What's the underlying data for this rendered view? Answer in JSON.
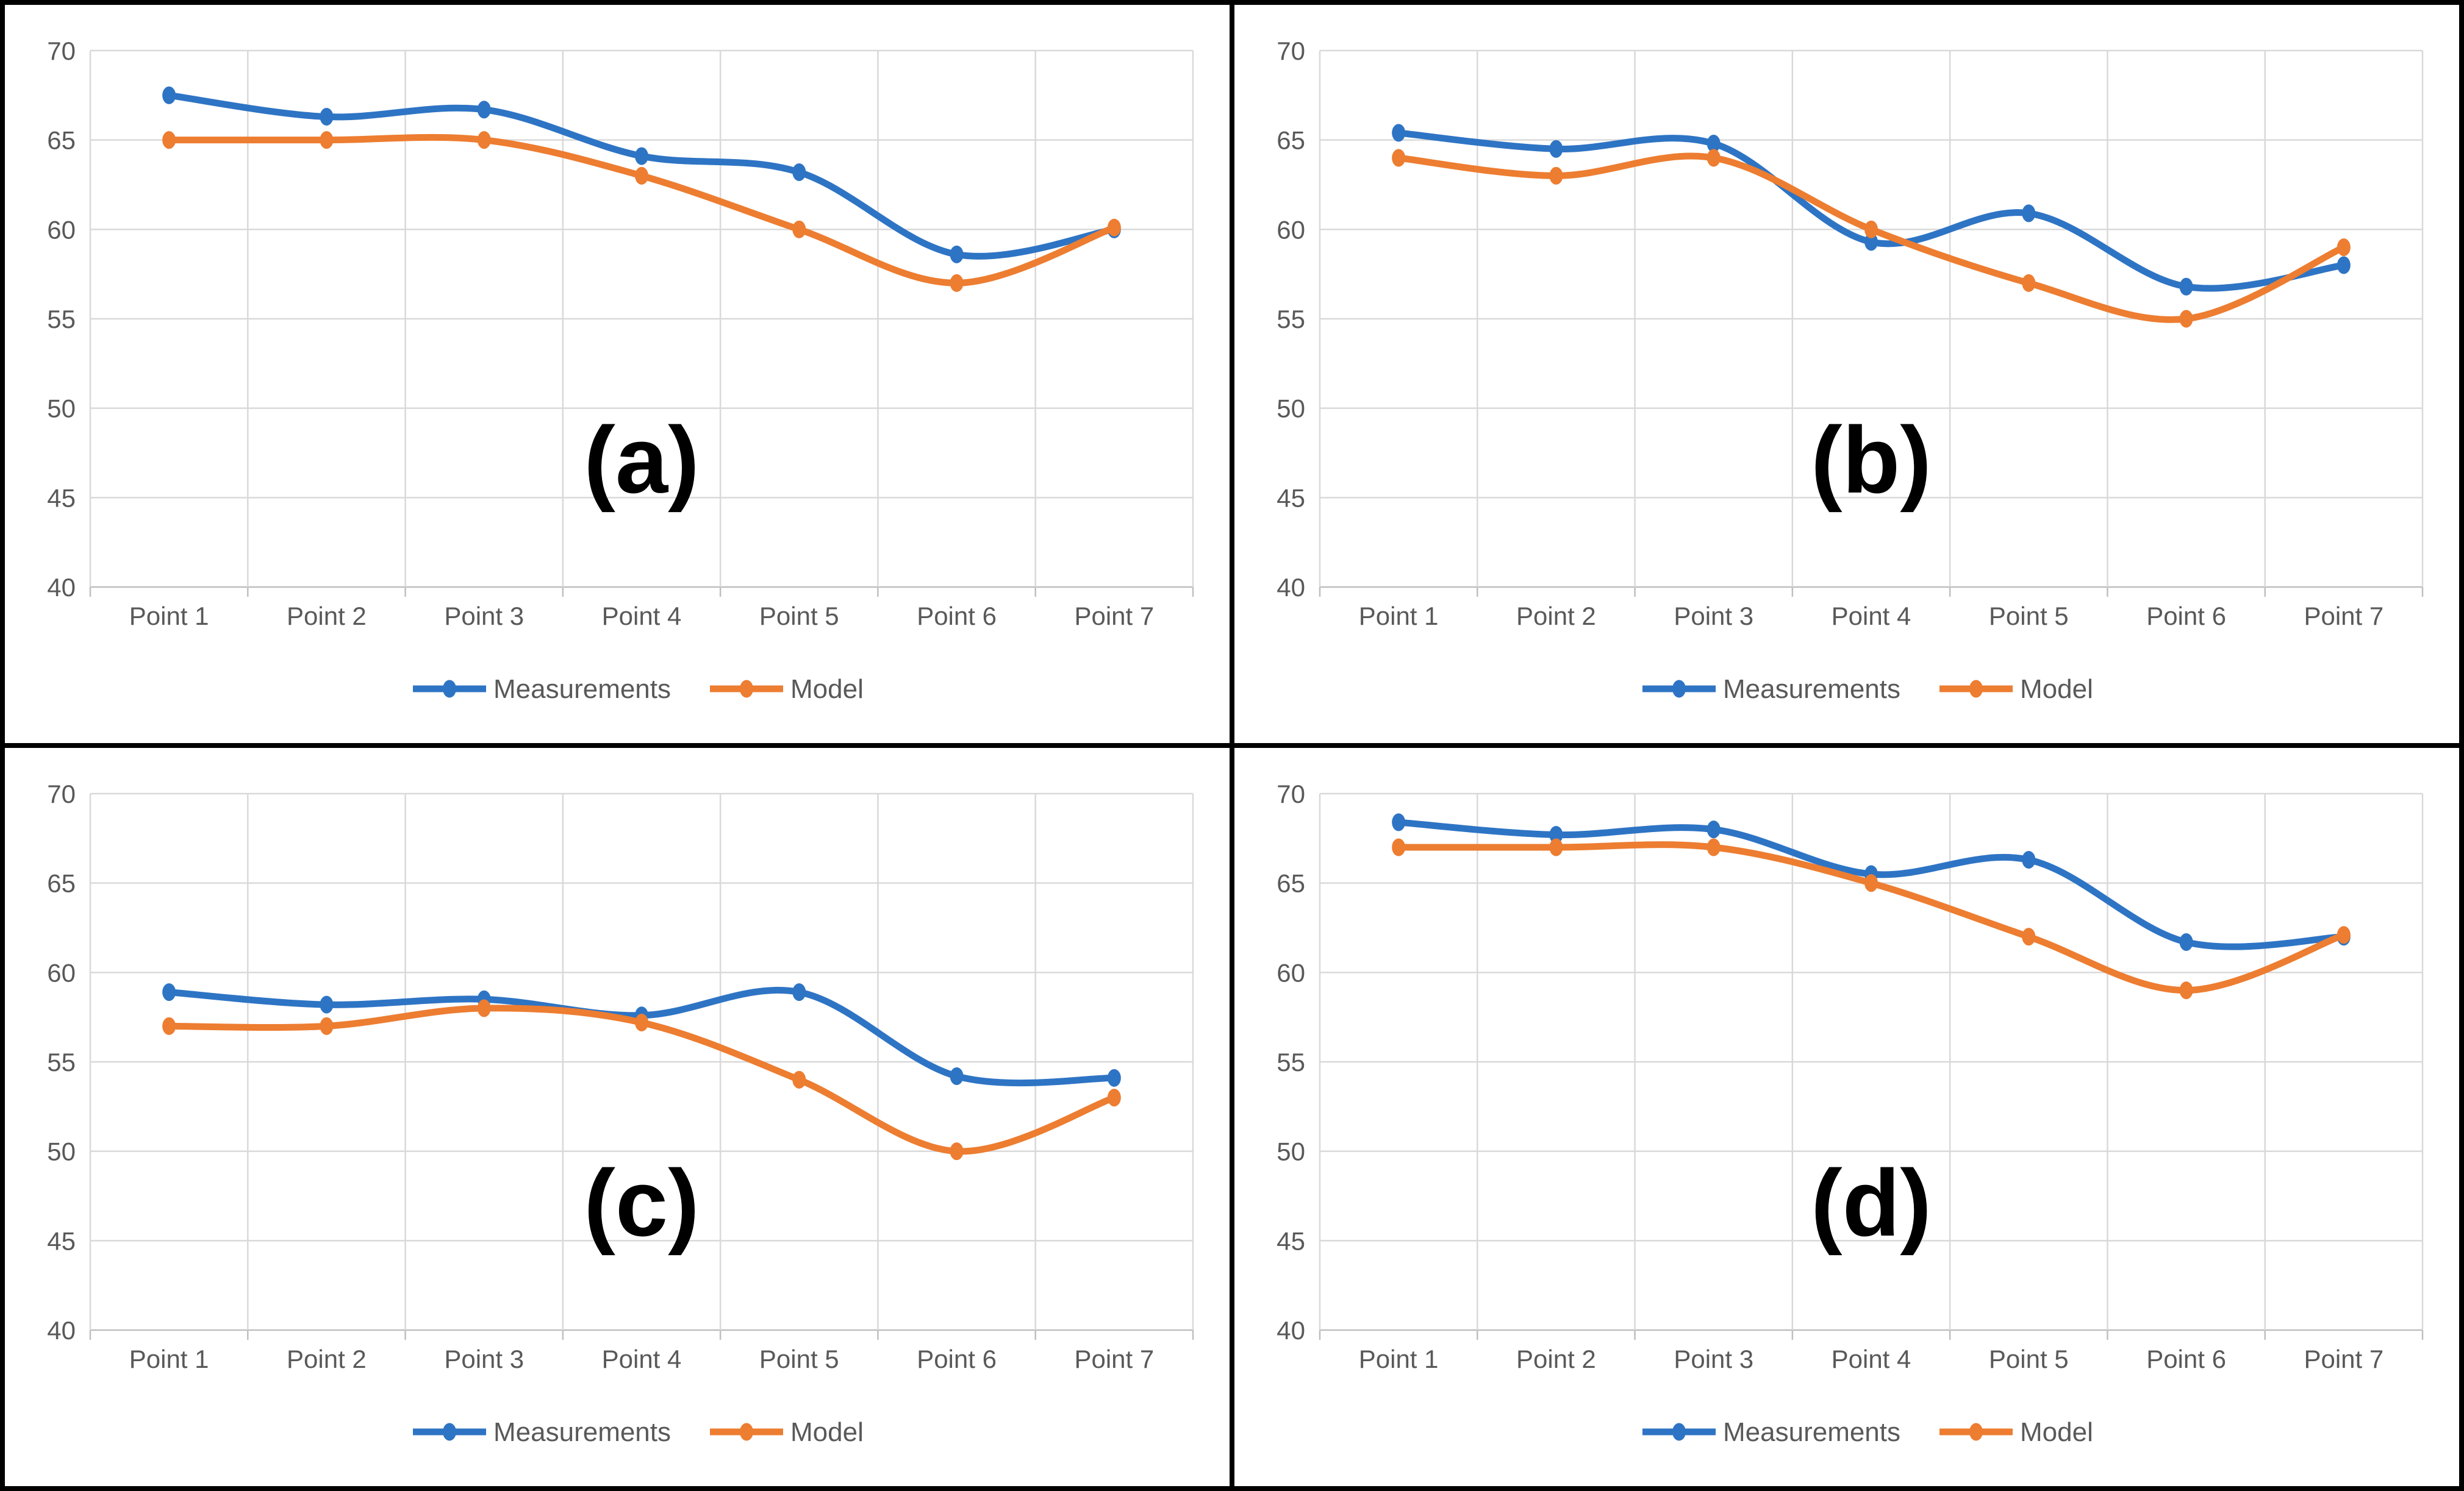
{
  "figure": {
    "background": "#ffffff",
    "frame_color": "#000000"
  },
  "palette": {
    "measurements": "#2E74C4",
    "model": "#ED7D31",
    "gridline": "#D9D9D9",
    "axis_line": "#BFBFBF",
    "tick_text": "#595959",
    "panel_label": "#000000"
  },
  "chart_data": [
    {
      "type": "line",
      "panel": "a",
      "label": "(a)",
      "grid": true,
      "legend_position": "bottom",
      "ylim": [
        40,
        70
      ],
      "y_ticks": [
        70,
        65,
        60,
        55,
        50,
        45,
        40
      ],
      "categories": [
        "Point 1",
        "Point 2",
        "Point 3",
        "Point 4",
        "Point 5",
        "Point 6",
        "Point 7"
      ],
      "series": [
        {
          "name": "Measurements",
          "color_key": "measurements",
          "values": [
            67.5,
            66.3,
            66.7,
            64.1,
            63.2,
            58.6,
            60
          ]
        },
        {
          "name": "Model",
          "color_key": "model",
          "values": [
            65,
            65,
            65,
            63,
            60,
            57,
            60.1
          ]
        }
      ]
    },
    {
      "type": "line",
      "panel": "b",
      "label": "(b)",
      "grid": true,
      "legend_position": "bottom",
      "ylim": [
        40,
        70
      ],
      "y_ticks": [
        70,
        65,
        60,
        55,
        50,
        45,
        40
      ],
      "categories": [
        "Point 1",
        "Point 2",
        "Point 3",
        "Point 4",
        "Point 5",
        "Point 6",
        "Point 7"
      ],
      "series": [
        {
          "name": "Measurements",
          "color_key": "measurements",
          "values": [
            65.4,
            64.5,
            64.8,
            59.3,
            60.9,
            56.8,
            58
          ]
        },
        {
          "name": "Model",
          "color_key": "model",
          "values": [
            64,
            63,
            64,
            60,
            57,
            55,
            59
          ]
        }
      ]
    },
    {
      "type": "line",
      "panel": "c",
      "label": "(c)",
      "grid": true,
      "legend_position": "bottom",
      "ylim": [
        40,
        70
      ],
      "y_ticks": [
        70,
        65,
        60,
        55,
        50,
        45,
        40
      ],
      "categories": [
        "Point 1",
        "Point 2",
        "Point 3",
        "Point 4",
        "Point 5",
        "Point 6",
        "Point 7"
      ],
      "series": [
        {
          "name": "Measurements",
          "color_key": "measurements",
          "values": [
            58.9,
            58.2,
            58.5,
            57.6,
            58.9,
            54.2,
            54.1
          ]
        },
        {
          "name": "Model",
          "color_key": "model",
          "values": [
            57,
            57,
            58,
            57.2,
            54,
            50,
            53
          ]
        }
      ]
    },
    {
      "type": "line",
      "panel": "d",
      "label": "(d)",
      "grid": true,
      "legend_position": "bottom",
      "ylim": [
        40,
        70
      ],
      "y_ticks": [
        70,
        65,
        60,
        55,
        50,
        45,
        40
      ],
      "categories": [
        "Point 1",
        "Point 2",
        "Point 3",
        "Point 4",
        "Point 5",
        "Point 6",
        "Point 7"
      ],
      "series": [
        {
          "name": "Measurements",
          "color_key": "measurements",
          "values": [
            68.4,
            67.7,
            68,
            65.5,
            66.3,
            61.7,
            62
          ]
        },
        {
          "name": "Model",
          "color_key": "model",
          "values": [
            67,
            67,
            67,
            65,
            62,
            59,
            62.1
          ]
        }
      ]
    }
  ]
}
